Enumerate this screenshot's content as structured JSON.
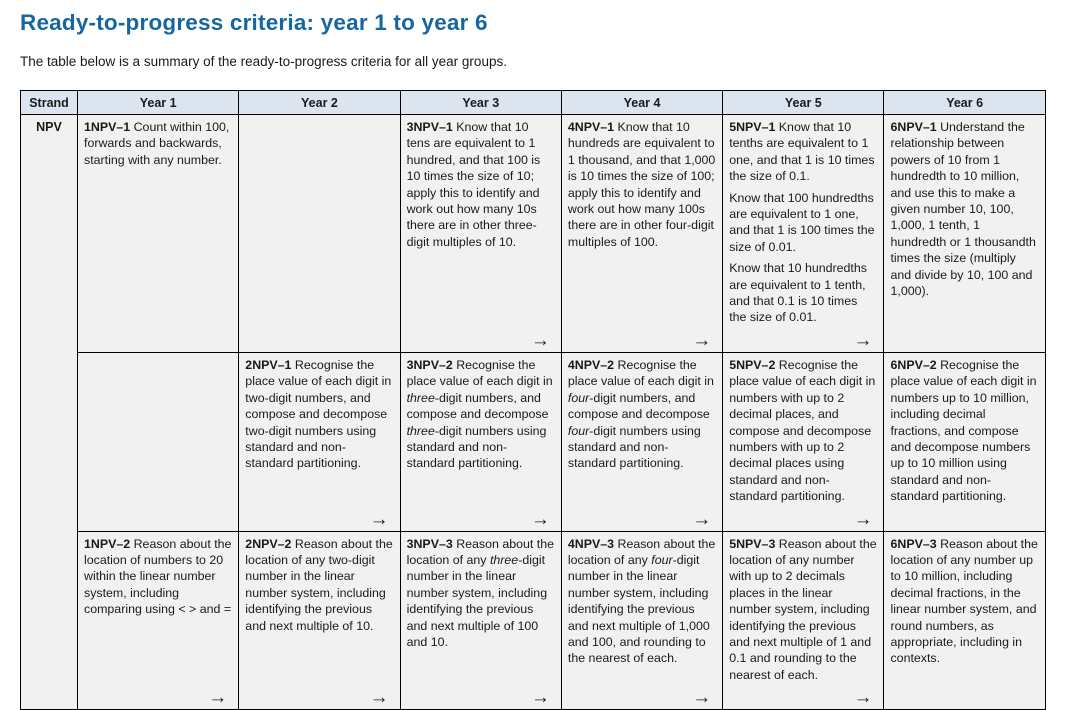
{
  "page": {
    "title": "Ready-to-progress criteria: year 1 to year 6",
    "intro": "The table below is a summary of the ready-to-progress criteria for all year groups."
  },
  "colors": {
    "title": "#17679f",
    "header_bg": "#dbe4ef",
    "cell_bg": "#f1f1f1",
    "border": "#000000"
  },
  "table": {
    "corner_header": "Strand",
    "strand_label": "NPV",
    "year_headers": [
      "Year 1",
      "Year 2",
      "Year 3",
      "Year 4",
      "Year 5",
      "Year 6"
    ],
    "arrow_glyph": "→",
    "rows": [
      {
        "cells": [
          {
            "arrow": false,
            "paras": [
              [
                {
                  "t": "1NPV–1",
                  "b": true
                },
                {
                  "t": " Count within 100, forwards and backwards, starting with any number."
                }
              ]
            ]
          },
          {
            "arrow": false,
            "paras": []
          },
          {
            "arrow": true,
            "paras": [
              [
                {
                  "t": "3NPV–1",
                  "b": true
                },
                {
                  "t": " Know that 10 tens are equivalent to 1 hundred, and that 100 is 10 times the size of 10; apply this to identify and work out how many 10s there are in other three-digit multiples of 10."
                }
              ]
            ]
          },
          {
            "arrow": true,
            "paras": [
              [
                {
                  "t": "4NPV–1",
                  "b": true
                },
                {
                  "t": " Know that 10 hundreds are equivalent to 1 thousand, and that 1,000 is 10 times the size of 100; apply this to identify and work out how many 100s there are in other four-digit multiples of 100."
                }
              ]
            ]
          },
          {
            "arrow": true,
            "paras": [
              [
                {
                  "t": "5NPV–1",
                  "b": true
                },
                {
                  "t": " Know that 10 tenths are equivalent to 1 one, and that 1 is 10 times the size of 0.1."
                }
              ],
              [
                {
                  "t": "Know that 100 hundredths are equivalent to 1 one, and that 1 is 100 times the size of 0.01."
                }
              ],
              [
                {
                  "t": "Know that 10 hundredths are equivalent to 1 tenth, and that 0.1 is 10 times the size of 0.01."
                }
              ]
            ]
          },
          {
            "arrow": false,
            "paras": [
              [
                {
                  "t": "6NPV–1",
                  "b": true
                },
                {
                  "t": " Understand the relationship between powers of 10 from 1 hundredth to 10 million, and use this to make a given number 10, 100, 1,000, 1 tenth, 1 hundredth or 1 thousandth times the size (multiply and divide by 10, 100 and 1,000)."
                }
              ]
            ]
          }
        ]
      },
      {
        "cells": [
          {
            "arrow": false,
            "paras": []
          },
          {
            "arrow": true,
            "paras": [
              [
                {
                  "t": "2NPV–1",
                  "b": true
                },
                {
                  "t": " Recognise the place value of each digit in two-digit numbers, and compose and decompose two-digit numbers using standard and non-standard partitioning."
                }
              ]
            ]
          },
          {
            "arrow": true,
            "paras": [
              [
                {
                  "t": "3NPV–2",
                  "b": true
                },
                {
                  "t": " Recognise the place value of each digit in "
                },
                {
                  "t": "three",
                  "i": true
                },
                {
                  "t": "-digit numbers, and compose and decompose "
                },
                {
                  "t": "three",
                  "i": true
                },
                {
                  "t": "-digit numbers using standard and non-standard partitioning."
                }
              ]
            ]
          },
          {
            "arrow": true,
            "paras": [
              [
                {
                  "t": "4NPV–2",
                  "b": true
                },
                {
                  "t": " Recognise the place value of each digit in "
                },
                {
                  "t": "four",
                  "i": true
                },
                {
                  "t": "-digit numbers, and compose and decompose "
                },
                {
                  "t": "four",
                  "i": true
                },
                {
                  "t": "-digit numbers using standard and non-standard partitioning."
                }
              ]
            ]
          },
          {
            "arrow": true,
            "paras": [
              [
                {
                  "t": "5NPV–2",
                  "b": true
                },
                {
                  "t": " Recognise the place value of each digit in numbers with up to 2 decimal places, and compose and decompose numbers with up to 2 decimal places using standard and non-standard partitioning."
                }
              ]
            ]
          },
          {
            "arrow": false,
            "paras": [
              [
                {
                  "t": "6NPV–2",
                  "b": true
                },
                {
                  "t": " Recognise the place value of each digit in numbers up to 10 million, including decimal fractions, and compose and decompose numbers up to 10 million using standard and non-standard partitioning."
                }
              ]
            ]
          }
        ]
      },
      {
        "cells": [
          {
            "arrow": true,
            "paras": [
              [
                {
                  "t": "1NPV–2",
                  "b": true
                },
                {
                  "t": " Reason about the location of numbers to 20 within the linear number system, including comparing using < > and ="
                }
              ]
            ]
          },
          {
            "arrow": true,
            "paras": [
              [
                {
                  "t": "2NPV–2",
                  "b": true
                },
                {
                  "t": " Reason about the location of any two-digit number in the linear number system, including identifying the previous and next multiple of 10."
                }
              ]
            ]
          },
          {
            "arrow": true,
            "paras": [
              [
                {
                  "t": "3NPV–3",
                  "b": true
                },
                {
                  "t": " Reason about the location of any "
                },
                {
                  "t": "three",
                  "i": true
                },
                {
                  "t": "-digit number in the linear number system, including identifying the previous and next multiple of 100 and 10."
                }
              ]
            ]
          },
          {
            "arrow": true,
            "paras": [
              [
                {
                  "t": "4NPV–3",
                  "b": true
                },
                {
                  "t": " Reason about the location of any "
                },
                {
                  "t": "four",
                  "i": true
                },
                {
                  "t": "-digit number in the linear number system, including identifying the previous and next multiple of 1,000 and 100, and rounding to the nearest of each."
                }
              ]
            ]
          },
          {
            "arrow": true,
            "paras": [
              [
                {
                  "t": "5NPV–3",
                  "b": true
                },
                {
                  "t": " Reason about the location of any number with up to 2 decimals places in the linear number system, including identifying the previous and next multiple of 1 and 0.1 and rounding to the nearest of each."
                }
              ]
            ]
          },
          {
            "arrow": false,
            "paras": [
              [
                {
                  "t": "6NPV–3",
                  "b": true
                },
                {
                  "t": " Reason about the location of any number up to 10 million, including decimal fractions, in the linear number system, and round numbers, as appropriate, including in contexts."
                }
              ]
            ]
          }
        ]
      }
    ]
  }
}
